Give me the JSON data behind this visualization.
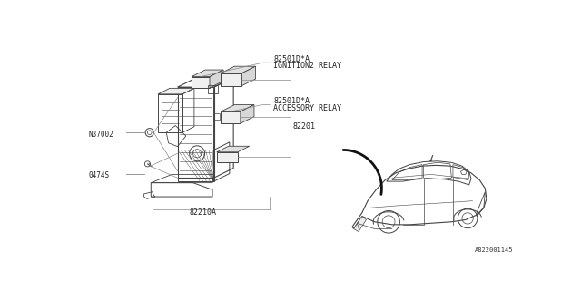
{
  "bg_color": "#ffffff",
  "line_color": "#666666",
  "diagram_color": "#444444",
  "title_bottom": "A822001145",
  "labels": {
    "ignition_relay_code": "82501D*A",
    "ignition_relay_name": "IGNITION2 RELAY",
    "accessory_relay_code": "82501D*A",
    "accessory_relay_name": "ACCESSORY RELAY",
    "n37002": "N37002",
    "part_0474s": "0474S",
    "part_82201": "82201",
    "part_82210a": "82210A"
  },
  "font_size_label": 6.0,
  "font_size_small": 5.5
}
